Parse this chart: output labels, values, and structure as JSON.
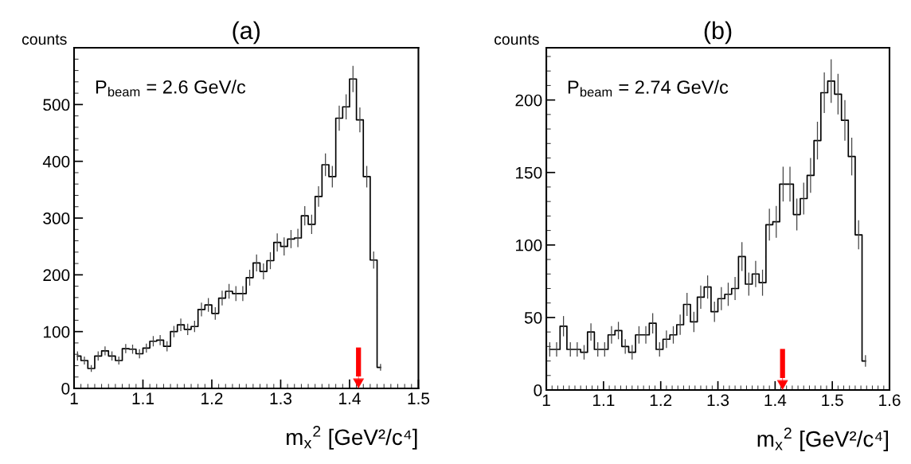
{
  "chart_data": [
    {
      "type": "step",
      "title": "(a)",
      "ylabel": "counts",
      "xlabel": "m$_{x}$$^{2}$ [GeV²/c⁴]",
      "color": "#000000",
      "annotations": [
        "P$_{beam}$ = 2.6 GeV/c"
      ],
      "x": [
        1.005,
        1.015,
        1.025,
        1.035,
        1.045,
        1.055,
        1.065,
        1.075,
        1.085,
        1.095,
        1.105,
        1.115,
        1.125,
        1.135,
        1.145,
        1.155,
        1.165,
        1.175,
        1.185,
        1.195,
        1.205,
        1.215,
        1.225,
        1.235,
        1.245,
        1.255,
        1.265,
        1.275,
        1.285,
        1.295,
        1.305,
        1.315,
        1.325,
        1.335,
        1.345,
        1.355,
        1.365,
        1.375,
        1.385,
        1.395,
        1.405,
        1.415,
        1.425,
        1.435,
        1.445
      ],
      "values": [
        57,
        49,
        35,
        57,
        66,
        57,
        49,
        70,
        69,
        61,
        71,
        83,
        85,
        74,
        100,
        112,
        104,
        109,
        139,
        147,
        132,
        159,
        171,
        167,
        167,
        195,
        221,
        206,
        225,
        257,
        250,
        263,
        265,
        304,
        289,
        338,
        394,
        373,
        476,
        496,
        545,
        473,
        373,
        226,
        37
      ],
      "errors": [
        8,
        7,
        6,
        8,
        8,
        8,
        7,
        8,
        8,
        8,
        8,
        9,
        9,
        9,
        10,
        11,
        10,
        10,
        12,
        12,
        11,
        13,
        13,
        13,
        13,
        14,
        15,
        14,
        15,
        16,
        16,
        16,
        16,
        17,
        17,
        18,
        20,
        19,
        22,
        22,
        23,
        22,
        19,
        15,
        6
      ],
      "xlim": [
        1,
        1.5
      ],
      "xticks": [
        1,
        1.1,
        1.2,
        1.3,
        1.4,
        1.5
      ],
      "ylim": [
        0,
        600
      ],
      "yticks": [
        0,
        100,
        200,
        300,
        400,
        500
      ],
      "ref_lines": [
        {
          "axis": "x",
          "value": 1.413,
          "color": "#ff0000"
        }
      ],
      "grid": false,
      "legend": false
    },
    {
      "type": "step",
      "title": "(b)",
      "ylabel": "counts",
      "xlabel": "m$_{x}$$^{2}$ [GeV²/c⁴]",
      "color": "#000000",
      "annotations": [
        "P$_{beam}$ = 2.74 GeV/c"
      ],
      "x": [
        1.006,
        1.018,
        1.03,
        1.042,
        1.054,
        1.066,
        1.078,
        1.09,
        1.102,
        1.114,
        1.126,
        1.138,
        1.15,
        1.162,
        1.174,
        1.186,
        1.198,
        1.21,
        1.222,
        1.234,
        1.246,
        1.258,
        1.27,
        1.282,
        1.294,
        1.306,
        1.318,
        1.33,
        1.342,
        1.354,
        1.366,
        1.378,
        1.39,
        1.402,
        1.414,
        1.426,
        1.438,
        1.45,
        1.462,
        1.474,
        1.486,
        1.498,
        1.51,
        1.522,
        1.534,
        1.546,
        1.558
      ],
      "values": [
        28,
        28,
        44,
        28,
        28,
        26,
        40,
        28,
        28,
        38,
        41,
        30,
        26,
        38,
        38,
        46,
        28,
        35,
        38,
        45,
        59,
        47,
        64,
        71,
        54,
        63,
        66,
        70,
        92,
        73,
        80,
        74,
        114,
        116,
        142,
        142,
        121,
        132,
        148,
        172,
        205,
        213,
        204,
        186,
        161,
        107,
        20
      ],
      "errors": [
        5,
        5,
        7,
        5,
        5,
        5,
        6,
        5,
        5,
        6,
        6,
        5,
        5,
        6,
        6,
        7,
        5,
        6,
        6,
        7,
        8,
        7,
        8,
        8,
        7,
        8,
        8,
        8,
        10,
        8,
        9,
        9,
        11,
        11,
        12,
        12,
        11,
        11,
        12,
        13,
        14,
        15,
        14,
        14,
        13,
        10,
        4
      ],
      "xlim": [
        1,
        1.6
      ],
      "xticks": [
        1,
        1.1,
        1.2,
        1.3,
        1.4,
        1.5,
        1.6
      ],
      "ylim": [
        0,
        236
      ],
      "yticks": [
        0,
        50,
        100,
        150,
        200
      ],
      "ref_lines": [
        {
          "axis": "x",
          "value": 1.413,
          "color": "#ff0000"
        }
      ],
      "grid": false,
      "legend": false
    }
  ]
}
